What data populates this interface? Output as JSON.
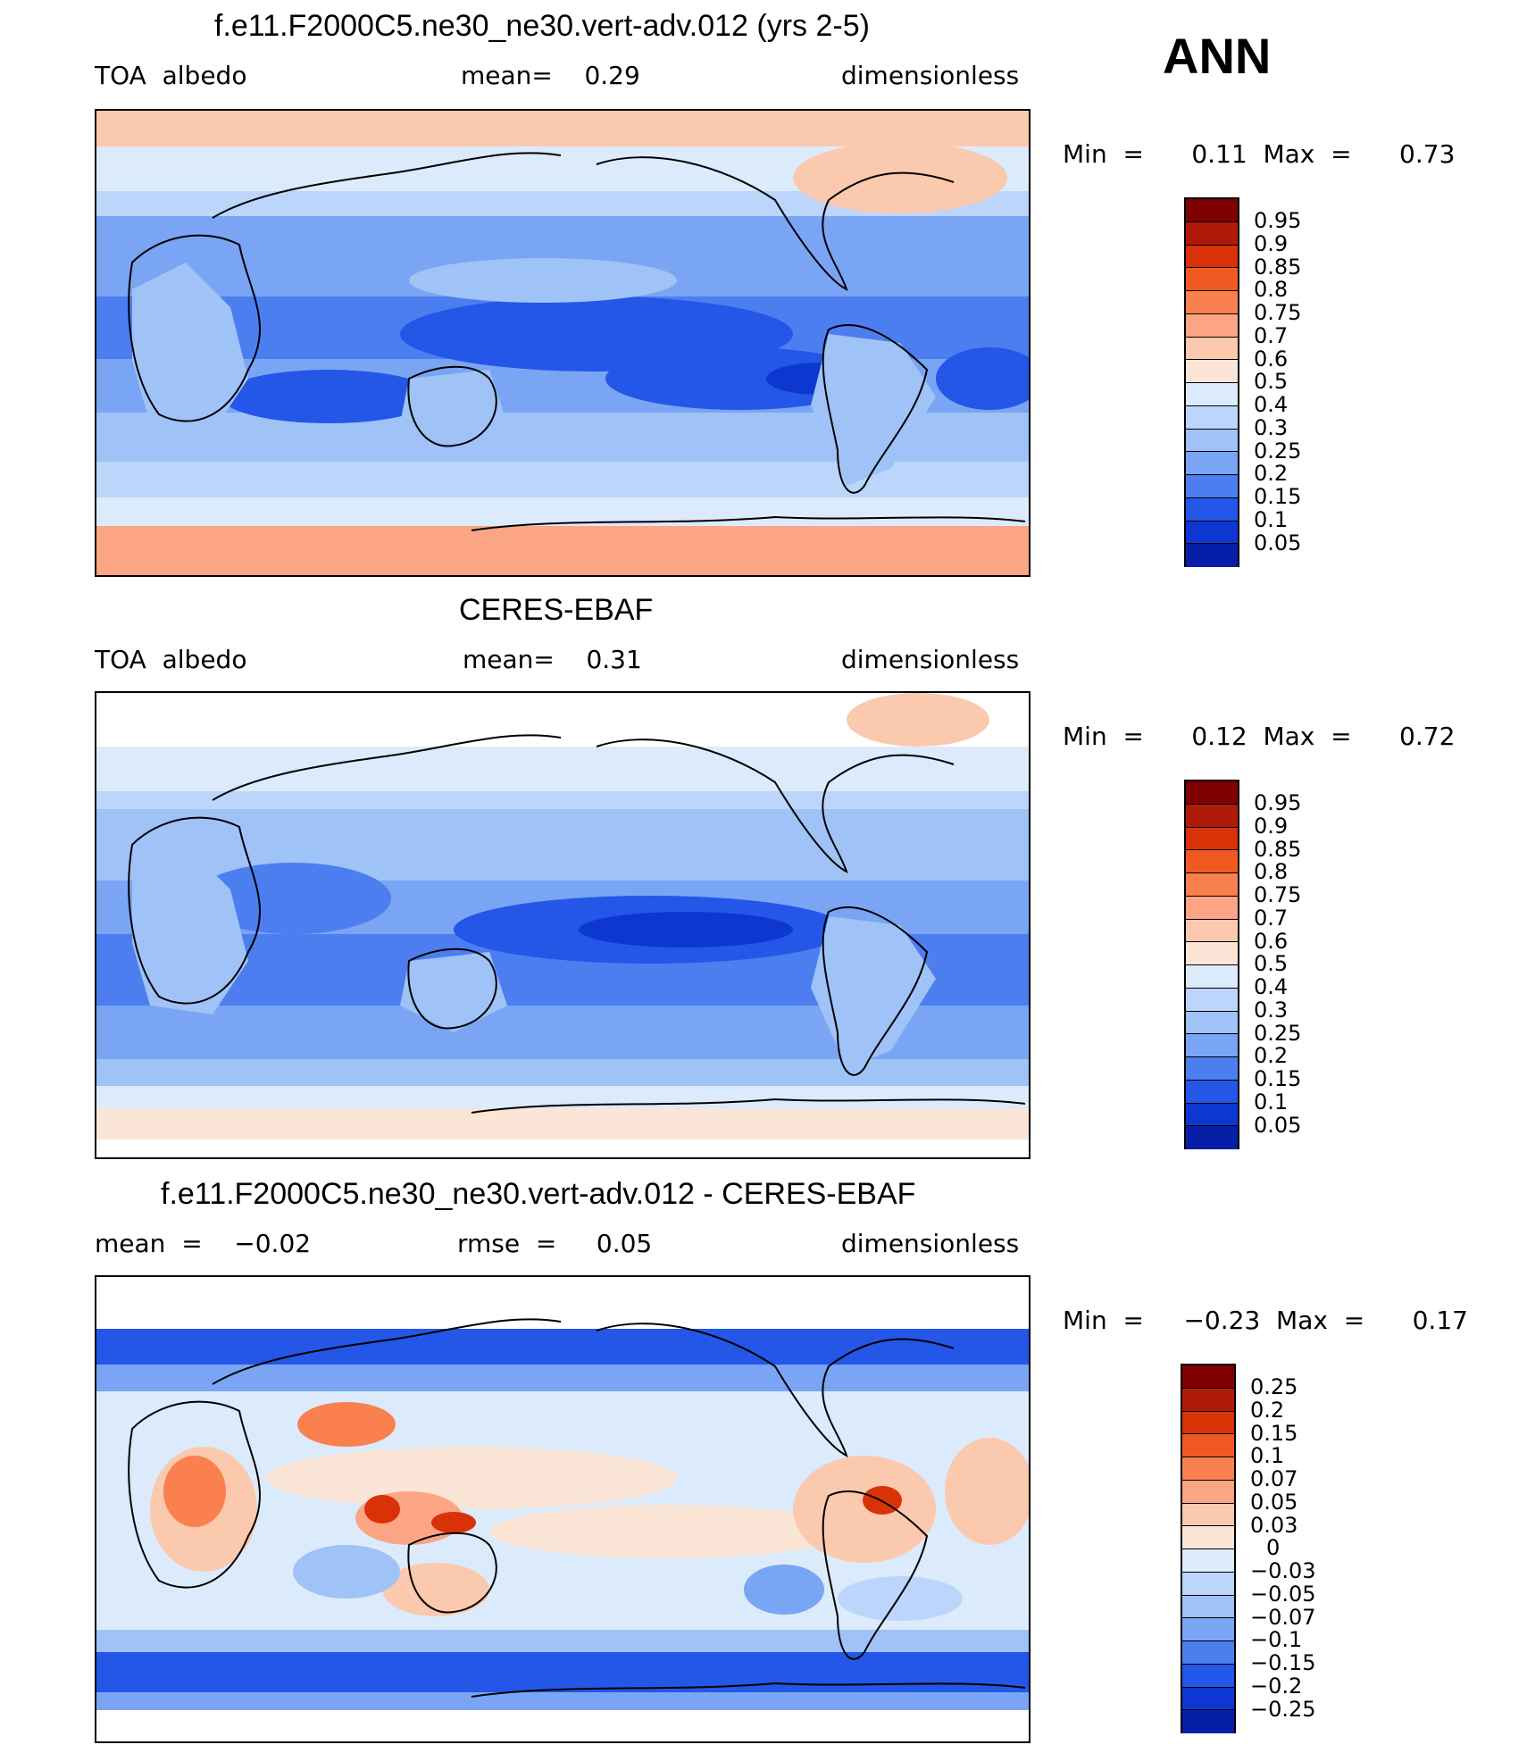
{
  "season": "ANN",
  "panels": [
    {
      "id": "model",
      "title": "f.e11.F2000C5.ne30_ne30.vert-adv.012 (yrs 2-5)",
      "left_label": "TOA  albedo",
      "center_label": "mean=    0.29",
      "right_label": "dimensionless",
      "minmax": "Min  =      0.11  Max  =      0.73",
      "levels": [
        "0.95",
        "0.9",
        "0.85",
        "0.8",
        "0.75",
        "0.7",
        "0.6",
        "0.5",
        "0.4",
        "0.3",
        "0.25",
        "0.2",
        "0.15",
        "0.1",
        "0.05"
      ],
      "colors": [
        "#7f0000",
        "#b01a0a",
        "#d93208",
        "#f05a22",
        "#fa8050",
        "#fba585",
        "#fbc9ae",
        "#fbe5d6",
        "#dcebfb",
        "#bcd5fa",
        "#9fc2f7",
        "#7aa5f4",
        "#4d7ef0",
        "#2456e8",
        "#0e37d2",
        "#061fa6"
      ]
    },
    {
      "id": "obs",
      "title": "CERES-EBAF",
      "left_label": "TOA  albedo",
      "center_label": "mean=    0.31",
      "right_label": "dimensionless",
      "minmax": "Min  =      0.12  Max  =      0.72",
      "levels": [
        "0.95",
        "0.9",
        "0.85",
        "0.8",
        "0.75",
        "0.7",
        "0.6",
        "0.5",
        "0.4",
        "0.3",
        "0.25",
        "0.2",
        "0.15",
        "0.1",
        "0.05"
      ],
      "colors": [
        "#7f0000",
        "#b01a0a",
        "#d93208",
        "#f05a22",
        "#fa8050",
        "#fba585",
        "#fbc9ae",
        "#fbe5d6",
        "#dcebfb",
        "#bcd5fa",
        "#9fc2f7",
        "#7aa5f4",
        "#4d7ef0",
        "#2456e8",
        "#0e37d2",
        "#061fa6"
      ]
    },
    {
      "id": "diff",
      "title": "f.e11.F2000C5.ne30_ne30.vert-adv.012 - CERES-EBAF",
      "left_label": "mean  =    −0.02",
      "center_label": "rmse  =     0.05",
      "right_label": "dimensionless",
      "minmax": "Min  =     −0.23  Max  =      0.17",
      "levels": [
        "0.25",
        "0.2",
        "0.15",
        "0.1",
        "0.07",
        "0.05",
        "0.03",
        "0",
        "−0.03",
        "−0.05",
        "−0.07",
        "−0.1",
        "−0.15",
        "−0.2",
        "−0.25"
      ],
      "colors": [
        "#7f0000",
        "#b01a0a",
        "#d93208",
        "#f05a22",
        "#fa8050",
        "#fba585",
        "#fbc9ae",
        "#fbe5d6",
        "#dcebfb",
        "#bcd5fa",
        "#9fc2f7",
        "#7aa5f4",
        "#4d7ef0",
        "#2456e8",
        "#0e37d2",
        "#061fa6"
      ]
    }
  ]
}
